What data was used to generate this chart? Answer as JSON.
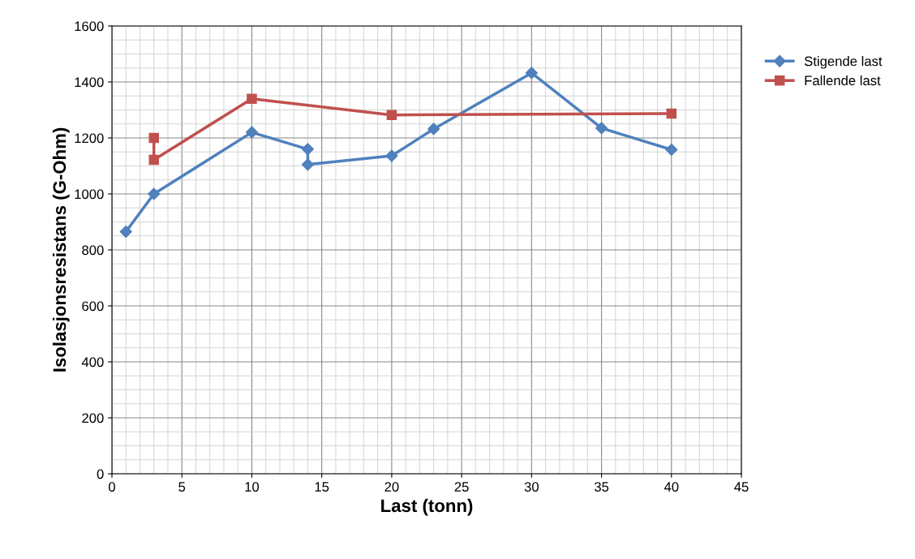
{
  "chart_data": {
    "type": "line",
    "xlabel": "Last (tonn)",
    "ylabel": "Isolasjonsresistans (G-Ohm)",
    "xlim": [
      0,
      45
    ],
    "xticks": [
      0,
      5,
      10,
      15,
      20,
      25,
      30,
      35,
      40,
      45
    ],
    "ylim": [
      0,
      1600
    ],
    "yticks": [
      0,
      200,
      400,
      600,
      800,
      1000,
      1200,
      1400,
      1600
    ],
    "grid": true,
    "legend": "top right",
    "series": [
      {
        "name": "Stigende last",
        "color": "#4f81bd",
        "marker": "diamond",
        "x": [
          1,
          3,
          10,
          14,
          14,
          20,
          23,
          30,
          35,
          40
        ],
        "values": [
          865,
          1000,
          1220,
          1160,
          1105,
          1136,
          1232,
          1432,
          1235,
          1158
        ]
      },
      {
        "name": "Fallende last",
        "color": "#c0504d",
        "marker": "square",
        "x": [
          3,
          3,
          10,
          20,
          40
        ],
        "values": [
          1200,
          1122,
          1340,
          1282,
          1287
        ]
      }
    ]
  }
}
